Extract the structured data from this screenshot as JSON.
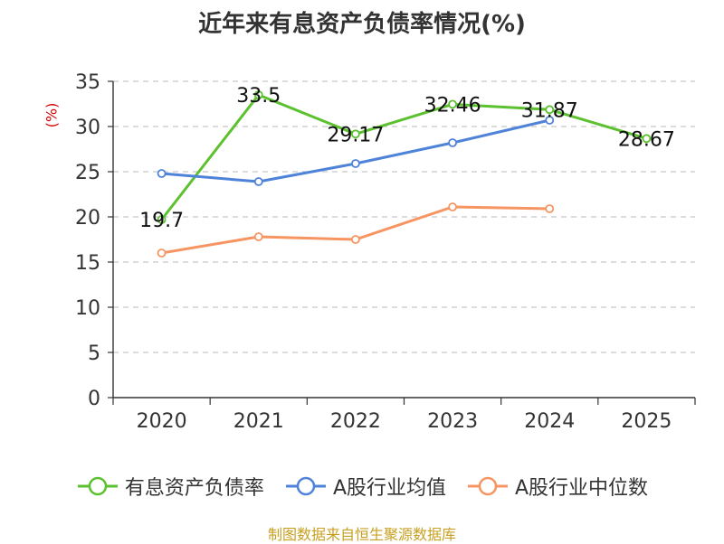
{
  "chart_data": {
    "type": "line",
    "title": "近年来有息资产负债率情况(%)",
    "ylabel": "(%)",
    "xlabel": "",
    "categories": [
      "2020",
      "2021",
      "2022",
      "2023",
      "2024",
      "2025"
    ],
    "ylim": [
      0,
      35
    ],
    "yticks": [
      0,
      5,
      10,
      15,
      20,
      25,
      30,
      35
    ],
    "grid": true,
    "legend_position": "bottom",
    "series": [
      {
        "name": "有息资产负债率",
        "color": "#5cc12e",
        "values": [
          19.7,
          33.5,
          29.17,
          32.46,
          31.87,
          28.67
        ],
        "data_labels": [
          "19.7",
          "33.5",
          "29.17",
          "32.46",
          "31.87",
          "28.67"
        ]
      },
      {
        "name": "A股行业均值",
        "color": "#4f82d9",
        "values": [
          24.8,
          23.9,
          25.9,
          28.2,
          30.7,
          null
        ]
      },
      {
        "name": "A股行业中位数",
        "color": "#f79562",
        "values": [
          16.0,
          17.8,
          17.5,
          21.1,
          20.9,
          null
        ]
      }
    ]
  },
  "source": "制图数据来自恒生聚源数据库"
}
